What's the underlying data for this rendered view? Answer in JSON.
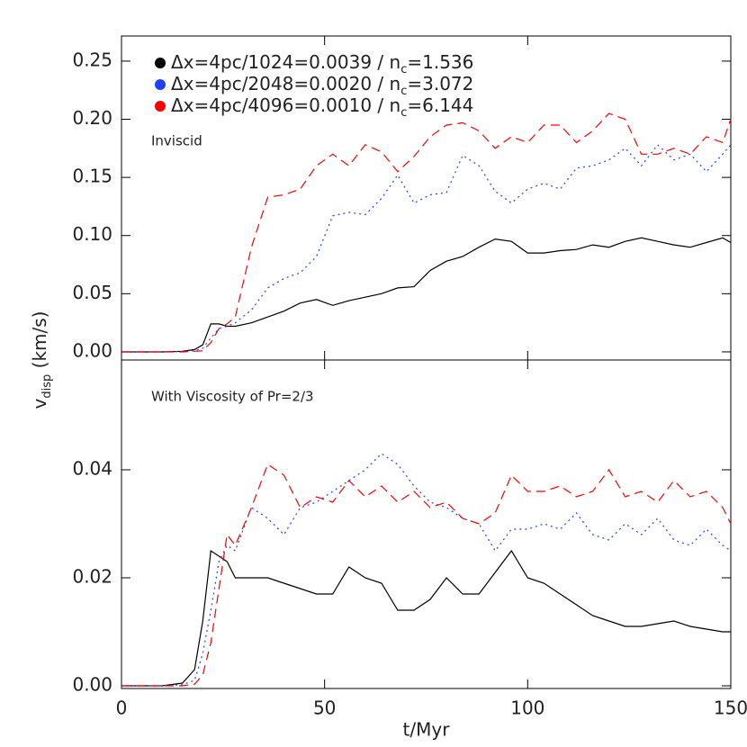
{
  "chart_data": [
    {
      "type": "line",
      "annotation": "Inviscid",
      "ylabel": [
        "v",
        "disp",
        " (km/s)"
      ],
      "x": [
        0,
        5,
        10,
        15,
        18,
        20,
        22,
        24,
        26,
        28,
        32,
        36,
        40,
        44,
        48,
        52,
        56,
        60,
        64,
        68,
        72,
        76,
        80,
        84,
        88,
        92,
        96,
        100,
        104,
        108,
        112,
        116,
        120,
        124,
        128,
        132,
        136,
        140,
        144,
        148,
        150
      ],
      "xlim": [
        0,
        150
      ],
      "xticks": [
        0,
        50,
        100,
        150
      ],
      "ylim": [
        -0.007,
        0.2716
      ],
      "yticks": [
        {
          "value": 0,
          "label": "0.00"
        },
        {
          "value": 0.05,
          "label": "0.05"
        },
        {
          "value": 0.1,
          "label": "0.10"
        },
        {
          "value": 0.15,
          "label": "0.15"
        },
        {
          "value": 0.2,
          "label": "0.20"
        },
        {
          "value": 0.25,
          "label": "0.25"
        }
      ],
      "series": [
        {
          "name": [
            "Δx=4pc/1024=0.0039 / n",
            "c",
            "=1.536"
          ],
          "color": "#000000",
          "style": "solid",
          "values": [
            0,
            0,
            0,
            0.0005,
            0.002,
            0.006,
            0.024,
            0.024,
            0.022,
            0.022,
            0.025,
            0.03,
            0.035,
            0.042,
            0.045,
            0.04,
            0.044,
            0.047,
            0.05,
            0.055,
            0.056,
            0.07,
            0.078,
            0.082,
            0.09,
            0.097,
            0.095,
            0.085,
            0.085,
            0.087,
            0.088,
            0.092,
            0.09,
            0.095,
            0.098,
            0.095,
            0.092,
            0.09,
            0.094,
            0.098,
            0.094
          ]
        },
        {
          "name": [
            "Δx=4pc/2048=0.0020 / n",
            "c",
            "=3.072"
          ],
          "color": "#2040ff",
          "style": "dotted",
          "values": [
            0,
            0,
            0,
            0.0003,
            0.001,
            0.003,
            0.012,
            0.02,
            0.022,
            0.025,
            0.036,
            0.055,
            0.063,
            0.068,
            0.082,
            0.117,
            0.12,
            0.118,
            0.132,
            0.152,
            0.128,
            0.135,
            0.137,
            0.169,
            0.16,
            0.138,
            0.128,
            0.14,
            0.145,
            0.14,
            0.158,
            0.16,
            0.165,
            0.175,
            0.16,
            0.178,
            0.165,
            0.17,
            0.155,
            0.17,
            0.178
          ]
        },
        {
          "name": [
            "Δx=4pc/4096=0.0010 / n",
            "c",
            "=6.144"
          ],
          "color": "#ff0000",
          "style": "dashed",
          "values": [
            0,
            0,
            0,
            0,
            0.0005,
            0.001,
            0.008,
            0.02,
            0.024,
            0.03,
            0.09,
            0.133,
            0.135,
            0.14,
            0.16,
            0.17,
            0.16,
            0.178,
            0.172,
            0.155,
            0.168,
            0.185,
            0.195,
            0.197,
            0.19,
            0.175,
            0.185,
            0.18,
            0.195,
            0.195,
            0.18,
            0.19,
            0.205,
            0.2,
            0.17,
            0.17,
            0.175,
            0.17,
            0.185,
            0.18,
            0.2
          ]
        }
      ]
    },
    {
      "type": "line",
      "annotation": "With Viscosity of Pr=2/3",
      "xlabel": "t/Myr",
      "x": [
        0,
        5,
        10,
        15,
        18,
        20,
        22,
        24,
        26,
        28,
        32,
        36,
        40,
        44,
        48,
        52,
        56,
        60,
        64,
        68,
        72,
        76,
        80,
        84,
        88,
        92,
        96,
        100,
        104,
        108,
        112,
        116,
        120,
        124,
        128,
        132,
        136,
        140,
        144,
        148,
        150
      ],
      "xlim": [
        0,
        150
      ],
      "xticks": [
        0,
        50,
        100,
        150
      ],
      "ylim": [
        -0.0005,
        0.060333
      ],
      "yticks": [
        {
          "value": 0,
          "label": "0.00"
        },
        {
          "value": 0.02,
          "label": "0.02"
        },
        {
          "value": 0.04,
          "label": "0.04"
        }
      ],
      "series": [
        {
          "color": "#000000",
          "style": "solid",
          "values": [
            0,
            0,
            0,
            0.0005,
            0.003,
            0.012,
            0.025,
            0.024,
            0.023,
            0.02,
            0.02,
            0.02,
            0.019,
            0.018,
            0.017,
            0.017,
            0.022,
            0.02,
            0.019,
            0.014,
            0.014,
            0.016,
            0.02,
            0.017,
            0.017,
            0.021,
            0.025,
            0.02,
            0.019,
            0.017,
            0.015,
            0.013,
            0.012,
            0.011,
            0.011,
            0.0115,
            0.012,
            0.011,
            0.0105,
            0.01,
            0.01
          ]
        },
        {
          "color": "#2040ff",
          "style": "dotted",
          "values": [
            0,
            0,
            0,
            0.0002,
            0.001,
            0.006,
            0.014,
            0.023,
            0.026,
            0.025,
            0.033,
            0.031,
            0.028,
            0.033,
            0.034,
            0.036,
            0.038,
            0.04,
            0.043,
            0.041,
            0.037,
            0.034,
            0.033,
            0.031,
            0.03,
            0.025,
            0.029,
            0.029,
            0.03,
            0.029,
            0.032,
            0.028,
            0.027,
            0.03,
            0.028,
            0.031,
            0.027,
            0.026,
            0.029,
            0.026,
            0.025
          ]
        },
        {
          "color": "#ff0000",
          "style": "dashed",
          "values": [
            0,
            0,
            0,
            0,
            0.0003,
            0.002,
            0.008,
            0.018,
            0.028,
            0.026,
            0.033,
            0.041,
            0.039,
            0.033,
            0.035,
            0.034,
            0.038,
            0.035,
            0.037,
            0.034,
            0.036,
            0.033,
            0.034,
            0.031,
            0.03,
            0.032,
            0.039,
            0.036,
            0.036,
            0.037,
            0.035,
            0.036,
            0.04,
            0.035,
            0.036,
            0.034,
            0.038,
            0.035,
            0.036,
            0.033,
            0.03
          ]
        }
      ]
    }
  ]
}
